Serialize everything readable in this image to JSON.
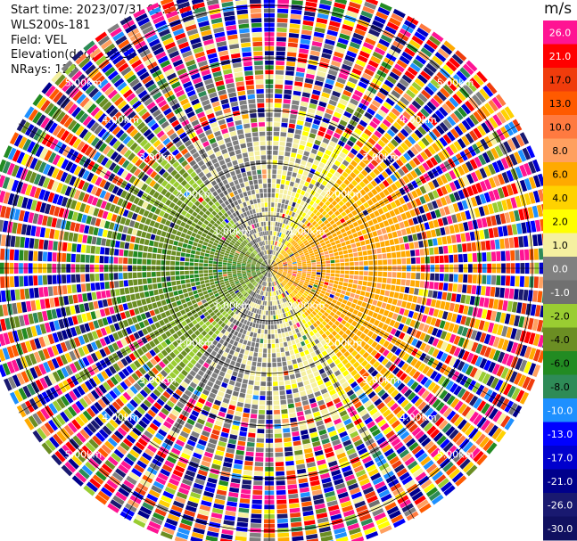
{
  "header": {
    "start_time": "Start time: 2023/07/31 02:12:19",
    "site": "WLS200s-181",
    "field": "Field: VEL",
    "elevation": "Elevation(deg): 35.30",
    "nrays": "NRays: 120"
  },
  "colorbar": {
    "unit": "m/s",
    "ticks": [
      "26.0",
      "21.0",
      "17.0",
      "13.0",
      "10.0",
      "8.0",
      "6.0",
      "4.0",
      "2.0",
      "1.0",
      "0.0",
      "-1.0",
      "-2.0",
      "-4.0",
      "-6.0",
      "-8.0",
      "-10.0",
      "-13.0",
      "-17.0",
      "-21.0",
      "-26.0",
      "-30.0"
    ],
    "colors": [
      "#ff1493",
      "#ff0000",
      "#f03c0c",
      "#ff5a00",
      "#ff7a40",
      "#ffa060",
      "#ffaa00",
      "#ffd200",
      "#ffff00",
      "#f5f0a0",
      "#808080",
      "#707070",
      "#9acd32",
      "#6b8e23",
      "#228b22",
      "#2e8b57",
      "#1e90ff",
      "#0000ff",
      "#0000cd",
      "#00008b",
      "#191970",
      "#101060"
    ]
  },
  "chart_data": {
    "type": "heatmap",
    "title": "",
    "field": "VEL",
    "units": "m/s",
    "nrays": 120,
    "range_rings_km": [
      1.0,
      2.0,
      3.0,
      4.0,
      5.0
    ],
    "ring_labels": [
      "1.00km",
      "2.00km",
      "3.00km",
      "4.00km",
      "5.00km"
    ],
    "max_range_km": 5.5,
    "clim": [
      -30,
      30
    ],
    "grid": true,
    "pattern": {
      "description_values": "inner region: positive (yellow/orange) on east side, negative (green) on west side, near-zero (gray) north and south; outer region noisy",
      "east_inner_ms": 4.0,
      "west_inner_ms": -4.0,
      "noise_start_km": 2.6
    }
  }
}
